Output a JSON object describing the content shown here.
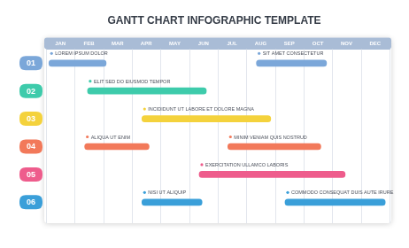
{
  "chart_data": {
    "type": "bar",
    "orientation": "horizontal",
    "title": "GANTT CHART INFOGRAPHIC TEMPLATE",
    "categories": [
      "01",
      "02",
      "03",
      "04",
      "05",
      "06"
    ],
    "tasks": [
      {
        "row": "01",
        "label": "LOREM IPSUM DOLOR",
        "start": 0.1,
        "end": 2.1,
        "color": "#7ba7d9"
      },
      {
        "row": "01",
        "label": "SIT AMET CONSECTETUR",
        "start": 7.35,
        "end": 9.8,
        "color": "#7ba7d9"
      },
      {
        "row": "02",
        "label": "ELIT SED DO EIUSMOD TEMPOR",
        "start": 1.45,
        "end": 5.6,
        "color": "#3ecbab"
      },
      {
        "row": "03",
        "label": "INCIDIDUNT UT LABORE ET DOLORE MAGNA",
        "start": 3.35,
        "end": 7.85,
        "color": "#f4d23c"
      },
      {
        "row": "04",
        "label": "ALIQUA UT ENIM",
        "start": 1.35,
        "end": 3.6,
        "color": "#f2795a"
      },
      {
        "row": "04",
        "label": "MINIM VENIAM QUIS NOSTRUD",
        "start": 6.35,
        "end": 9.6,
        "color": "#f2795a"
      },
      {
        "row": "05",
        "label": "EXERCITATION ULLAMCO LABORIS",
        "start": 5.35,
        "end": 10.45,
        "color": "#ee5c8c"
      },
      {
        "row": "06",
        "label": "NISI UT ALIQUIP",
        "start": 3.35,
        "end": 5.45,
        "color": "#3a9fd9"
      },
      {
        "row": "06",
        "label": "COMMODO CONSEQUAT DUIS AUTE IRURE",
        "start": 8.35,
        "end": 11.85,
        "color": "#3a9fd9"
      }
    ],
    "xlim": [
      0,
      12
    ],
    "xticks": [
      {
        "value": 0.5,
        "label": "JAN"
      },
      {
        "value": 1.5,
        "label": "FEB"
      },
      {
        "value": 2.5,
        "label": "MAR"
      },
      {
        "value": 3.5,
        "label": "APR"
      },
      {
        "value": 4.5,
        "label": "MAY"
      },
      {
        "value": 5.5,
        "label": "JUN"
      },
      {
        "value": 6.5,
        "label": "JUL"
      },
      {
        "value": 7.5,
        "label": "AUG"
      },
      {
        "value": 8.5,
        "label": "SEP"
      },
      {
        "value": 9.5,
        "label": "OCT"
      },
      {
        "value": 10.5,
        "label": "NOV"
      },
      {
        "value": 11.5,
        "label": "DEC"
      }
    ],
    "grid": true,
    "tick_labels": "x"
  }
}
